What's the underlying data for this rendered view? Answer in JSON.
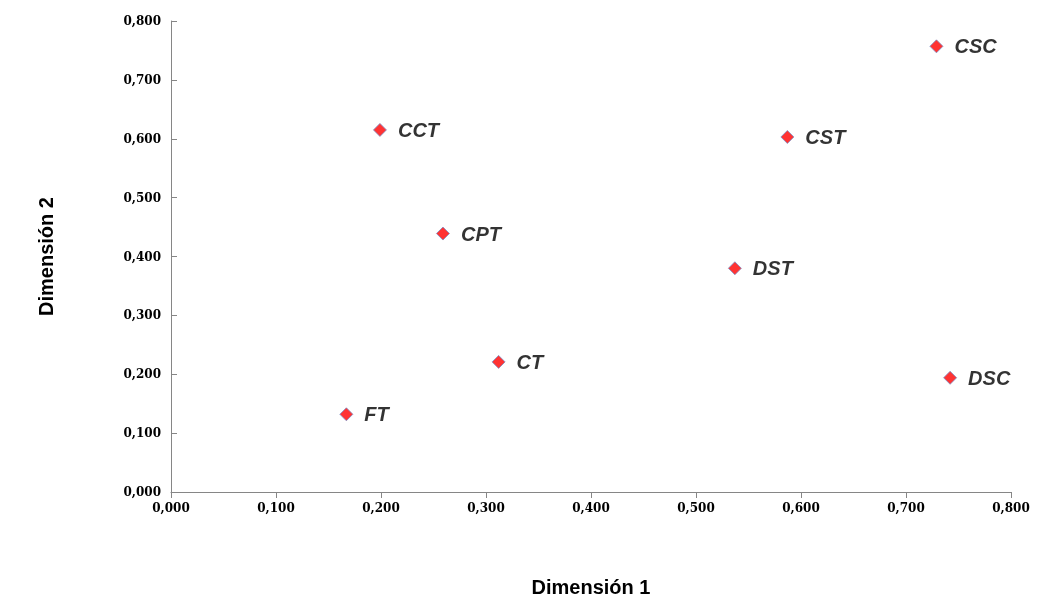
{
  "chart_data": {
    "type": "scatter",
    "xlabel": "Dimensión 1",
    "ylabel": "Dimensión 2",
    "x": [
      0.729,
      0.199,
      0.587,
      0.259,
      0.537,
      0.312,
      0.742,
      0.167
    ],
    "values": [
      0.757,
      0.615,
      0.603,
      0.439,
      0.38,
      0.221,
      0.194,
      0.132
    ],
    "color": "#ff0000",
    "marker": "diamond",
    "grid": false,
    "xlim": [
      0,
      0.8
    ],
    "ylim": [
      0,
      0.8
    ],
    "xticks": [
      {
        "value": 0,
        "label": "0,000"
      },
      {
        "value": 0.1,
        "label": "0,100"
      },
      {
        "value": 0.2,
        "label": "0,200"
      },
      {
        "value": 0.3,
        "label": "0,300"
      },
      {
        "value": 0.4,
        "label": "0,400"
      },
      {
        "value": 0.5,
        "label": "0,500"
      },
      {
        "value": 0.6,
        "label": "0,600"
      },
      {
        "value": 0.7,
        "label": "0,700"
      },
      {
        "value": 0.8,
        "label": "0,800"
      }
    ],
    "yticks": [
      {
        "value": 0,
        "label": "0,000"
      },
      {
        "value": 0.1,
        "label": "0,100"
      },
      {
        "value": 0.2,
        "label": "0,200"
      },
      {
        "value": 0.3,
        "label": "0,300"
      },
      {
        "value": 0.4,
        "label": "0,400"
      },
      {
        "value": 0.5,
        "label": "0,500"
      },
      {
        "value": 0.6,
        "label": "0,600"
      },
      {
        "value": 0.7,
        "label": "0,700"
      },
      {
        "value": 0.8,
        "label": "0,800"
      }
    ],
    "annotations": [
      {
        "text": "CSC",
        "x": 0.729,
        "y": 0.757
      },
      {
        "text": "CCT",
        "x": 0.199,
        "y": 0.615
      },
      {
        "text": "CST",
        "x": 0.587,
        "y": 0.603
      },
      {
        "text": "CPT",
        "x": 0.259,
        "y": 0.439
      },
      {
        "text": "DST",
        "x": 0.537,
        "y": 0.38
      },
      {
        "text": "CT",
        "x": 0.312,
        "y": 0.221
      },
      {
        "text": "DSC",
        "x": 0.742,
        "y": 0.194
      },
      {
        "text": "FT",
        "x": 0.167,
        "y": 0.132
      }
    ]
  }
}
